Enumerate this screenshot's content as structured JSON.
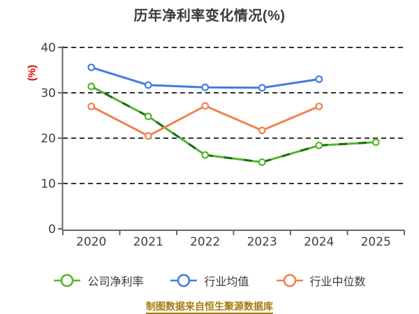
{
  "title": "历年净利率变化情况(%)",
  "footer": {
    "text": "制图数据来自恒生聚源数据库",
    "color": "#a67c0e"
  },
  "colors": {
    "title": "#3a3a3a",
    "ylabel": "#e00000",
    "axis": "#666666",
    "grid": "#333333",
    "tick_label": "#404040",
    "legend_text": "#3a3a3a",
    "marker_fill": "#ffffff"
  },
  "chart_data": {
    "type": "line",
    "title": "历年净利率变化情况(%)",
    "xlabel": "",
    "ylabel": "(%)",
    "ylim": [
      0,
      40
    ],
    "yticks": [
      0,
      10,
      20,
      30,
      40
    ],
    "grid": "horizontal dashed",
    "legend_position": "bottom",
    "categories": [
      "2020",
      "2021",
      "2022",
      "2023",
      "2024",
      "2025"
    ],
    "series": [
      {
        "name": "公司净利率",
        "color": "#54b42d",
        "dash_overlay_color": "#176c17",
        "values": [
          31.4,
          24.8,
          16.3,
          14.7,
          18.4,
          19.1
        ]
      },
      {
        "name": "行业均值",
        "color": "#4679e2",
        "values": [
          35.6,
          31.7,
          31.2,
          31.1,
          33.0,
          null
        ]
      },
      {
        "name": "行业中位数",
        "color": "#f0814e",
        "values": [
          27.0,
          20.5,
          27.1,
          21.7,
          27.0,
          null
        ]
      }
    ]
  }
}
